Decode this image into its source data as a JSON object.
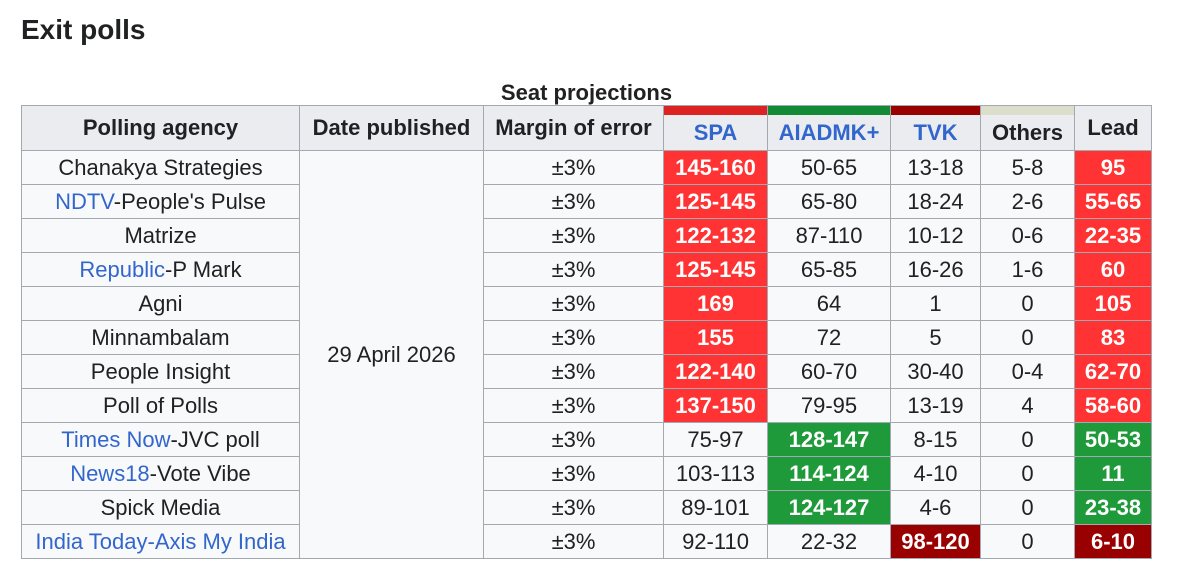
{
  "heading": "Exit polls",
  "table": {
    "caption": "Seat projections",
    "headers": {
      "agency": "Polling agency",
      "date": "Date published",
      "margin": "Margin of error",
      "lead": "Lead"
    },
    "parties": [
      {
        "name": "SPA",
        "link": true,
        "bar_color": "#dd2222",
        "highlight_color": "#ff3333"
      },
      {
        "name": "AIADMK+",
        "link": true,
        "bar_color": "#138a36",
        "highlight_color": "#1f9a3a"
      },
      {
        "name": "TVK",
        "link": true,
        "bar_color": "#990000",
        "highlight_color": "#990000"
      },
      {
        "name": "Others",
        "link": false,
        "bar_color": "#ddddcc",
        "highlight_color": "#ddddcc"
      }
    ],
    "date": "29 April 2026",
    "rows": [
      {
        "agency": [
          {
            "text": "Chanakya Strategies",
            "link": false
          }
        ],
        "margin": "±3%",
        "seats": [
          "145-160",
          "50-65",
          "13-18",
          "5-8"
        ],
        "lead": "95",
        "leader": 0
      },
      {
        "agency": [
          {
            "text": "NDTV",
            "link": true
          },
          {
            "text": "-People's Pulse",
            "link": false
          }
        ],
        "margin": "±3%",
        "seats": [
          "125-145",
          "65-80",
          "18-24",
          "2-6"
        ],
        "lead": "55-65",
        "leader": 0
      },
      {
        "agency": [
          {
            "text": "Matrize",
            "link": false
          }
        ],
        "margin": "±3%",
        "seats": [
          "122-132",
          "87-110",
          "10-12",
          "0-6"
        ],
        "lead": "22-35",
        "leader": 0
      },
      {
        "agency": [
          {
            "text": "Republic",
            "link": true
          },
          {
            "text": "-P Mark",
            "link": false
          }
        ],
        "margin": "±3%",
        "seats": [
          "125-145",
          "65-85",
          "16-26",
          "1-6"
        ],
        "lead": "60",
        "leader": 0
      },
      {
        "agency": [
          {
            "text": "Agni",
            "link": false
          }
        ],
        "margin": "±3%",
        "seats": [
          "169",
          "64",
          "1",
          "0"
        ],
        "lead": "105",
        "leader": 0
      },
      {
        "agency": [
          {
            "text": "Minnambalam",
            "link": false
          }
        ],
        "margin": "±3%",
        "seats": [
          "155",
          "72",
          "5",
          "0"
        ],
        "lead": "83",
        "leader": 0
      },
      {
        "agency": [
          {
            "text": "People Insight",
            "link": false
          }
        ],
        "margin": "±3%",
        "seats": [
          "122-140",
          "60-70",
          "30-40",
          "0-4"
        ],
        "lead": "62-70",
        "leader": 0
      },
      {
        "agency": [
          {
            "text": "Poll of Polls",
            "link": false
          }
        ],
        "margin": "±3%",
        "seats": [
          "137-150",
          "79-95",
          "13-19",
          "4"
        ],
        "lead": "58-60",
        "leader": 0
      },
      {
        "agency": [
          {
            "text": "Times Now",
            "link": true
          },
          {
            "text": "-JVC poll",
            "link": false
          }
        ],
        "margin": "±3%",
        "seats": [
          "75-97",
          "128-147",
          "8-15",
          "0"
        ],
        "lead": "50-53",
        "leader": 1
      },
      {
        "agency": [
          {
            "text": "News18",
            "link": true
          },
          {
            "text": "-Vote Vibe",
            "link": false
          }
        ],
        "margin": "±3%",
        "seats": [
          "103-113",
          "114-124",
          "4-10",
          "0"
        ],
        "lead": "11",
        "leader": 1
      },
      {
        "agency": [
          {
            "text": "Spick Media",
            "link": false
          }
        ],
        "margin": "±3%",
        "seats": [
          "89-101",
          "124-127",
          "4-6",
          "0"
        ],
        "lead": "23-38",
        "leader": 1
      },
      {
        "agency": [
          {
            "text": "India Today-Axis My India",
            "link": true
          }
        ],
        "margin": "±3%",
        "seats": [
          "92-110",
          "22-32",
          "98-120",
          "0"
        ],
        "lead": "6-10",
        "leader": 2
      }
    ]
  }
}
